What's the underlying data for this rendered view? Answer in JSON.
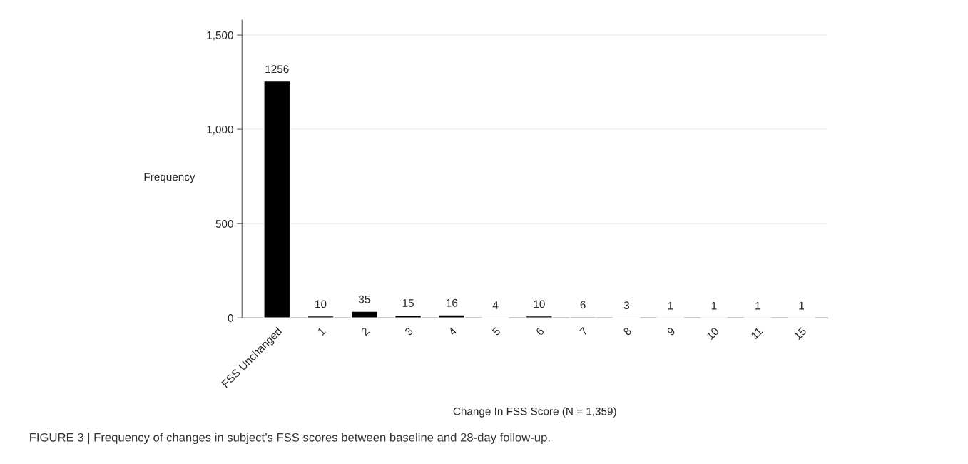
{
  "chart_data": {
    "type": "bar",
    "categories": [
      "FSS Unchanged",
      "1",
      "2",
      "3",
      "4",
      "5",
      "6",
      "7",
      "8",
      "9",
      "10",
      "11",
      "15"
    ],
    "values": [
      1256,
      10,
      35,
      15,
      16,
      4,
      10,
      6,
      3,
      1,
      1,
      1,
      1
    ],
    "color": "#000000",
    "xlabel": "Change In FSS Score (N = 1,359)",
    "ylabel": "Frequency",
    "ylim": [
      0,
      1580
    ],
    "yticks": [
      0,
      {
        "value": 500,
        "label": "500"
      },
      {
        "value": 1000,
        "label": "1,000"
      },
      {
        "value": 1500,
        "label": "1,500"
      }
    ],
    "grid": "y",
    "data_labels": true,
    "annotations": [
      "FIGURE 3 | Frequency of changes in subject’s FSS scores between baseline and 28-day follow-up."
    ]
  }
}
